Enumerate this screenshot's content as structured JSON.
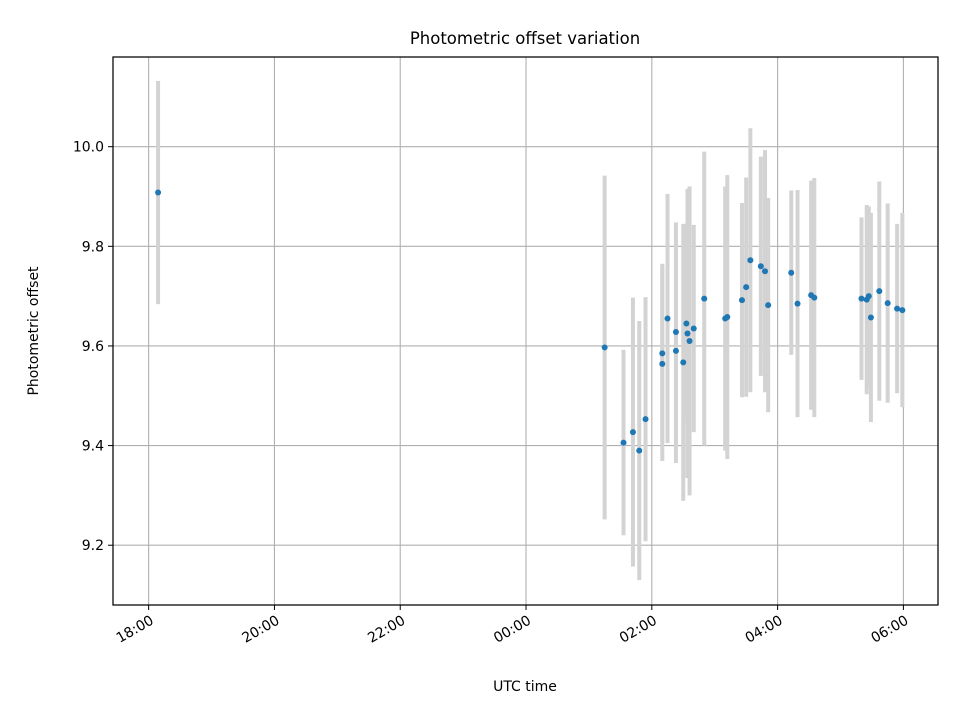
{
  "chart_data": {
    "type": "scatter",
    "title": "Photometric offset variation",
    "xlabel": "UTC time",
    "ylabel": "Photometric offset",
    "x_ticks": [
      "18:00",
      "20:00",
      "22:00",
      "00:00",
      "02:00",
      "04:00",
      "06:00"
    ],
    "y_ticks": [
      "9.2",
      "9.4",
      "9.6",
      "9.8",
      "10.0"
    ],
    "grid": true,
    "xlim": [
      "17:26",
      "06:33"
    ],
    "ylim": [
      9.08,
      10.18
    ],
    "colors": {
      "points": "#1f77b4",
      "errorbars": "#d3d3d3",
      "grid": "#b0b0b0"
    },
    "points": [
      {
        "t": "18:09",
        "y": 9.908,
        "err": 0.224
      },
      {
        "t": "01:15",
        "y": 9.597,
        "err": 0.345
      },
      {
        "t": "01:33",
        "y": 9.406,
        "err": 0.186
      },
      {
        "t": "01:42",
        "y": 9.427,
        "err": 0.27
      },
      {
        "t": "01:48",
        "y": 9.39,
        "err": 0.26
      },
      {
        "t": "01:54",
        "y": 9.453,
        "err": 0.245
      },
      {
        "t": "02:10",
        "y": 9.564,
        "err": 0.195
      },
      {
        "t": "02:10",
        "y": 9.585,
        "err": 0.18
      },
      {
        "t": "02:15",
        "y": 9.655,
        "err": 0.25
      },
      {
        "t": "02:23",
        "y": 9.628,
        "err": 0.22
      },
      {
        "t": "02:23",
        "y": 9.59,
        "err": 0.225
      },
      {
        "t": "02:30",
        "y": 9.567,
        "err": 0.278
      },
      {
        "t": "02:33",
        "y": 9.645,
        "err": 0.2
      },
      {
        "t": "02:34",
        "y": 9.625,
        "err": 0.29
      },
      {
        "t": "02:36",
        "y": 9.61,
        "err": 0.31
      },
      {
        "t": "02:40",
        "y": 9.635,
        "err": 0.208
      },
      {
        "t": "02:50",
        "y": 9.695,
        "err": 0.295
      },
      {
        "t": "03:10",
        "y": 9.655,
        "err": 0.265
      },
      {
        "t": "03:12",
        "y": 9.658,
        "err": 0.285
      },
      {
        "t": "03:26",
        "y": 9.692,
        "err": 0.195
      },
      {
        "t": "03:30",
        "y": 9.718,
        "err": 0.22
      },
      {
        "t": "03:34",
        "y": 9.772,
        "err": 0.265
      },
      {
        "t": "03:44",
        "y": 9.76,
        "err": 0.22
      },
      {
        "t": "03:48",
        "y": 9.75,
        "err": 0.243
      },
      {
        "t": "03:51",
        "y": 9.682,
        "err": 0.215
      },
      {
        "t": "04:13",
        "y": 9.747,
        "err": 0.165
      },
      {
        "t": "04:19",
        "y": 9.685,
        "err": 0.228
      },
      {
        "t": "04:32",
        "y": 9.702,
        "err": 0.23
      },
      {
        "t": "04:35",
        "y": 9.697,
        "err": 0.24
      },
      {
        "t": "05:20",
        "y": 9.695,
        "err": 0.163
      },
      {
        "t": "05:25",
        "y": 9.693,
        "err": 0.19
      },
      {
        "t": "05:27",
        "y": 9.7,
        "err": 0.18
      },
      {
        "t": "05:29",
        "y": 9.657,
        "err": 0.21
      },
      {
        "t": "05:37",
        "y": 9.71,
        "err": 0.22
      },
      {
        "t": "05:45",
        "y": 9.686,
        "err": 0.2
      },
      {
        "t": "05:54",
        "y": 9.675,
        "err": 0.17
      },
      {
        "t": "05:59",
        "y": 9.672,
        "err": 0.195
      }
    ]
  }
}
